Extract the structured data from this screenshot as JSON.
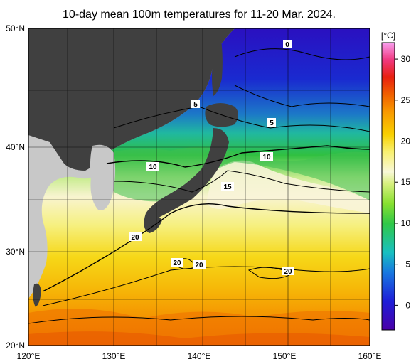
{
  "title": "10-day mean 100m temperatures for 11-20 Mar. 2024.",
  "axes": {
    "lat_labels": [
      {
        "text": "50°N",
        "value": 50
      },
      {
        "text": "40°N",
        "value": 40
      },
      {
        "text": "30°N",
        "value": 30
      },
      {
        "text": "20°N",
        "value": 20
      }
    ],
    "lon_labels": [
      {
        "text": "120°E",
        "value": 120
      },
      {
        "text": "130°E",
        "value": 130
      },
      {
        "text": "140°E",
        "value": 140
      },
      {
        "text": "150°E",
        "value": 150
      },
      {
        "text": "160°E",
        "value": 160
      }
    ]
  },
  "colorbar": {
    "unit": "[°C]",
    "min": -3,
    "max": 32,
    "ticks": [
      {
        "text": "30",
        "value": 30
      },
      {
        "text": "25",
        "value": 25
      },
      {
        "text": "20",
        "value": 20
      },
      {
        "text": "15",
        "value": 15
      },
      {
        "text": "10",
        "value": 10
      },
      {
        "text": "5",
        "value": 5
      },
      {
        "text": "0",
        "value": 0
      }
    ],
    "gradient": [
      "#4a00a8",
      "#1e1ed8",
      "#1878e0",
      "#18c0c0",
      "#30c848",
      "#88e030",
      "#d8f080",
      "#f8f8d8",
      "#f8f070",
      "#f8d000",
      "#f89800",
      "#f06000",
      "#e82010",
      "#f03880",
      "#f8a0f0"
    ]
  },
  "contour_labels": [
    {
      "text": "0"
    },
    {
      "text": "5"
    },
    {
      "text": "5"
    },
    {
      "text": "10"
    },
    {
      "text": "10"
    },
    {
      "text": "15"
    },
    {
      "text": "20"
    },
    {
      "text": "20"
    },
    {
      "text": "20"
    },
    {
      "text": "20"
    }
  ],
  "colors": {
    "land": "#404040",
    "land_outside": "#c8c8c8",
    "sea_cold": "#1e1ed8",
    "sea_warm": "#f89800"
  }
}
